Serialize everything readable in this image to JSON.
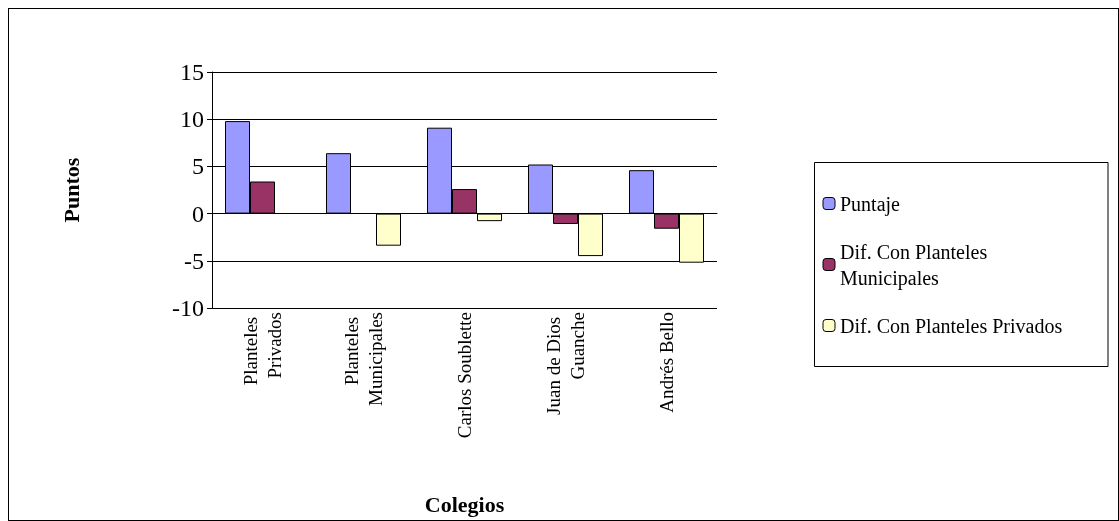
{
  "chart_data": {
    "type": "bar",
    "xlabel": "Colegios",
    "ylabel": "Puntos",
    "categories": [
      "Planteles Privados",
      "Planteles Municipales",
      "Carlos Soublette",
      "Juan de Dios Guanche",
      "Andrés Bello"
    ],
    "series": [
      {
        "name": "Puntaje",
        "color": "#9999ff",
        "values": [
          9.8,
          6.4,
          9.1,
          5.2,
          4.6
        ]
      },
      {
        "name": "Dif. Con Planteles Municipales",
        "color": "#993366",
        "values": [
          3.4,
          null,
          2.6,
          -1.1,
          -1.6
        ]
      },
      {
        "name": "Dif. Con Planteles Privados",
        "color": "#ffffcc",
        "values": [
          null,
          -3.4,
          -0.8,
          -4.5,
          -5.2
        ]
      }
    ],
    "ylim": [
      -10,
      15
    ],
    "yticks": [
      -10,
      -5,
      0,
      5,
      10,
      15
    ],
    "grid": "y",
    "legend": "right"
  }
}
